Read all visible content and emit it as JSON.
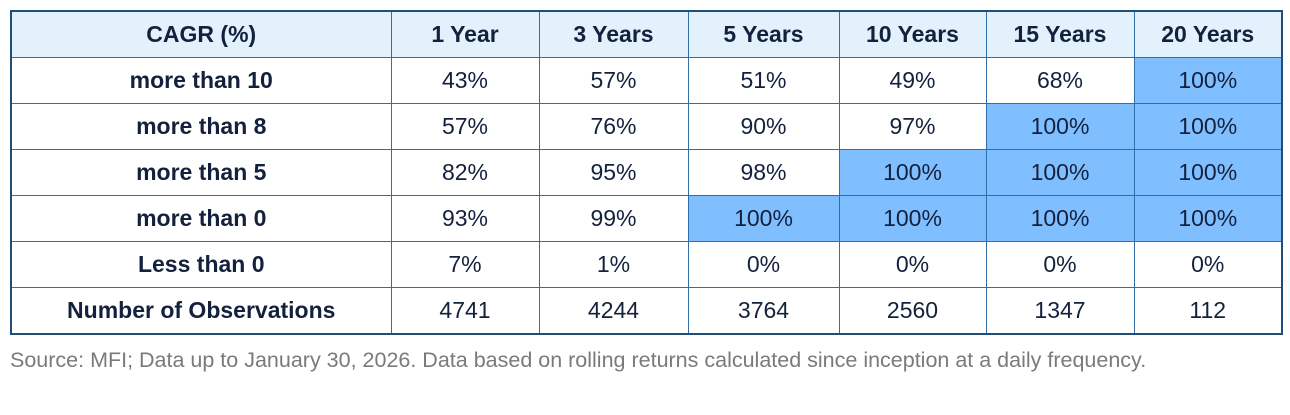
{
  "table": {
    "header": [
      "CAGR (%)",
      "1 Year",
      "3 Years",
      "5 Years",
      "10 Years",
      "15 Years",
      "20 Years"
    ],
    "rows": [
      [
        "more than 10",
        "43%",
        "57%",
        "51%",
        "49%",
        "68%",
        "100%"
      ],
      [
        "more than 8",
        "57%",
        "76%",
        "90%",
        "97%",
        "100%",
        "100%"
      ],
      [
        "more than 5",
        "82%",
        "95%",
        "98%",
        "100%",
        "100%",
        "100%"
      ],
      [
        "more than 0",
        "93%",
        "99%",
        "100%",
        "100%",
        "100%",
        "100%"
      ],
      [
        "Less than 0",
        "7%",
        "1%",
        "0%",
        "0%",
        "0%",
        "0%"
      ],
      [
        "Number of Observations",
        "4741",
        "4244",
        "3764",
        "2560",
        "1347",
        "112"
      ]
    ]
  },
  "note": "Source: MFI; Data up to January 30, 2026. Data based on rolling returns calculated since inception at a daily frequency."
}
